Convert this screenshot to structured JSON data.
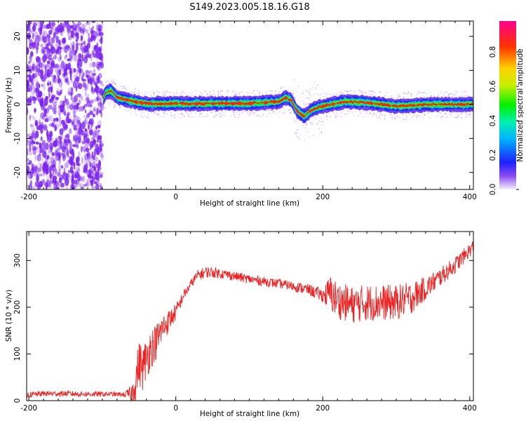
{
  "figure": {
    "title": "S149.2023.005.18.16.G18"
  },
  "colors": {
    "snr_line": "#ee2222",
    "scatter_purple": "#7a22ee",
    "ridge_red": "#ff1a1a"
  },
  "chart_data": [
    {
      "type": "heatmap",
      "xlabel": "Height of straight line (km)",
      "ylabel": "Frequency (Hz)",
      "xlim": [
        -203,
        405
      ],
      "ylim": [
        -25,
        24.5
      ],
      "xticks": [
        -200,
        0,
        200,
        400
      ],
      "yticks": [
        -20,
        -10,
        0,
        10,
        20
      ],
      "colorbar": {
        "label": "Normalized spectral amplitude",
        "range": [
          0,
          0.98
        ],
        "ticks": [
          0.0,
          0.2,
          0.4,
          0.6,
          0.8
        ]
      },
      "grid": false,
      "noise_region_x": [
        -203,
        -100
      ],
      "ridge": [
        {
          "x": -100,
          "y": 1.5
        },
        {
          "x": -95,
          "y": 3.5
        },
        {
          "x": -88,
          "y": 4.0
        },
        {
          "x": -80,
          "y": 2.0
        },
        {
          "x": -70,
          "y": 1.5
        },
        {
          "x": -55,
          "y": 0.8
        },
        {
          "x": -40,
          "y": 0.2
        },
        {
          "x": 0,
          "y": 0.2
        },
        {
          "x": 100,
          "y": 0.3
        },
        {
          "x": 140,
          "y": 0.8
        },
        {
          "x": 150,
          "y": 2.0
        },
        {
          "x": 158,
          "y": 1.0
        },
        {
          "x": 165,
          "y": -2.0
        },
        {
          "x": 175,
          "y": -3.5
        },
        {
          "x": 185,
          "y": -1.5
        },
        {
          "x": 200,
          "y": -0.5
        },
        {
          "x": 230,
          "y": 0.8
        },
        {
          "x": 260,
          "y": 0.5
        },
        {
          "x": 300,
          "y": -0.5
        },
        {
          "x": 350,
          "y": 0.0
        },
        {
          "x": 405,
          "y": 0.0
        }
      ]
    },
    {
      "type": "line",
      "xlabel": "Height of straight line (km)",
      "ylabel": "SNR (10 * v/v)",
      "xlim": [
        -203,
        405
      ],
      "ylim": [
        0,
        362
      ],
      "xticks": [
        -200,
        0,
        200,
        400
      ],
      "yticks": [
        0,
        100,
        200,
        300
      ],
      "grid": false,
      "series": [
        {
          "x": [
            -203,
            -180,
            -150,
            -120,
            -90,
            -70,
            -60,
            -55,
            -50,
            -45,
            -40,
            -35,
            -30,
            -25,
            -20,
            -15,
            -10,
            -5,
            0,
            5,
            10,
            15,
            20,
            25,
            30,
            40,
            50,
            70,
            100,
            150,
            180,
            200,
            210,
            220,
            240,
            260,
            300,
            320,
            340,
            360,
            380,
            405
          ],
          "y": [
            12,
            15,
            15,
            14,
            14,
            13,
            15,
            40,
            80,
            70,
            90,
            110,
            120,
            130,
            150,
            160,
            170,
            180,
            190,
            205,
            225,
            235,
            248,
            260,
            268,
            275,
            275,
            270,
            260,
            248,
            238,
            225,
            230,
            215,
            205,
            210,
            210,
            220,
            240,
            265,
            290,
            330
          ],
          "spread": [
            6,
            6,
            6,
            6,
            5,
            5,
            20,
            45,
            50,
            50,
            45,
            45,
            40,
            40,
            35,
            30,
            25,
            22,
            18,
            15,
            12,
            10,
            10,
            10,
            12,
            12,
            12,
            10,
            10,
            10,
            12,
            15,
            40,
            40,
            40,
            40,
            38,
            35,
            25,
            20,
            18,
            15
          ]
        }
      ]
    }
  ]
}
